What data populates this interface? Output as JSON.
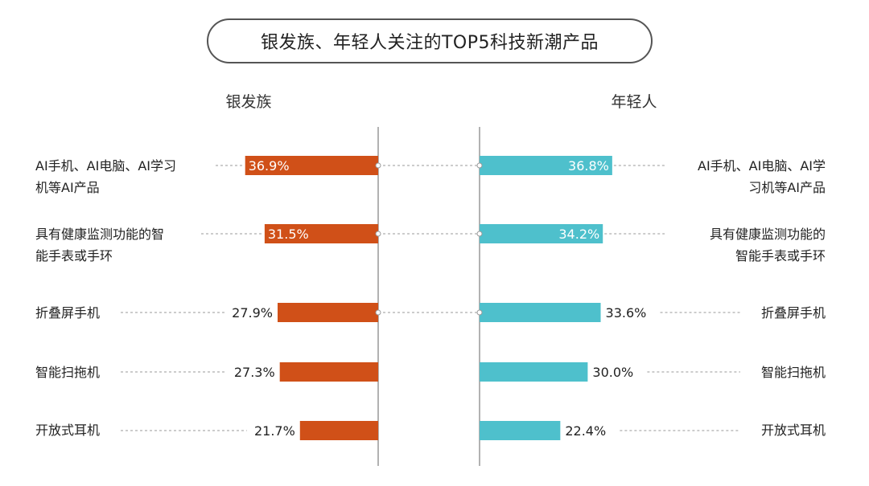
{
  "title": "银发族、年轻人关注的TOP5科技新潮产品",
  "colors": {
    "silver": "#d05018",
    "young": "#4ec0cc",
    "axis": "#666666",
    "dash": "#9a9a9a"
  },
  "chart_data": {
    "type": "bar",
    "orientation": "horizontal-butterfly",
    "value_format": "percent",
    "groups": [
      {
        "name": "银发族",
        "side": "left",
        "categories": [
          "AI手机、AI电脑、AI学习\n机等AI产品",
          "具有健康监测功能的智\n能手表或手环",
          "折叠屏手机",
          "智能扫拖机",
          "开放式耳机"
        ],
        "values": [
          36.9,
          31.5,
          27.9,
          27.3,
          21.7
        ],
        "labels": [
          "36.9%",
          "31.5%",
          "27.9%",
          "27.3%",
          "21.7%"
        ]
      },
      {
        "name": "年轻人",
        "side": "right",
        "categories": [
          "AI手机、AI电脑、AI学\n习机等AI产品",
          "具有健康监测功能的\n智能手表或手环",
          "折叠屏手机",
          "智能扫拖机",
          "开放式耳机"
        ],
        "values": [
          36.8,
          34.2,
          33.6,
          30.0,
          22.4
        ],
        "labels": [
          "36.8%",
          "34.2%",
          "33.6%",
          "30.0%",
          "22.4%"
        ]
      }
    ]
  }
}
